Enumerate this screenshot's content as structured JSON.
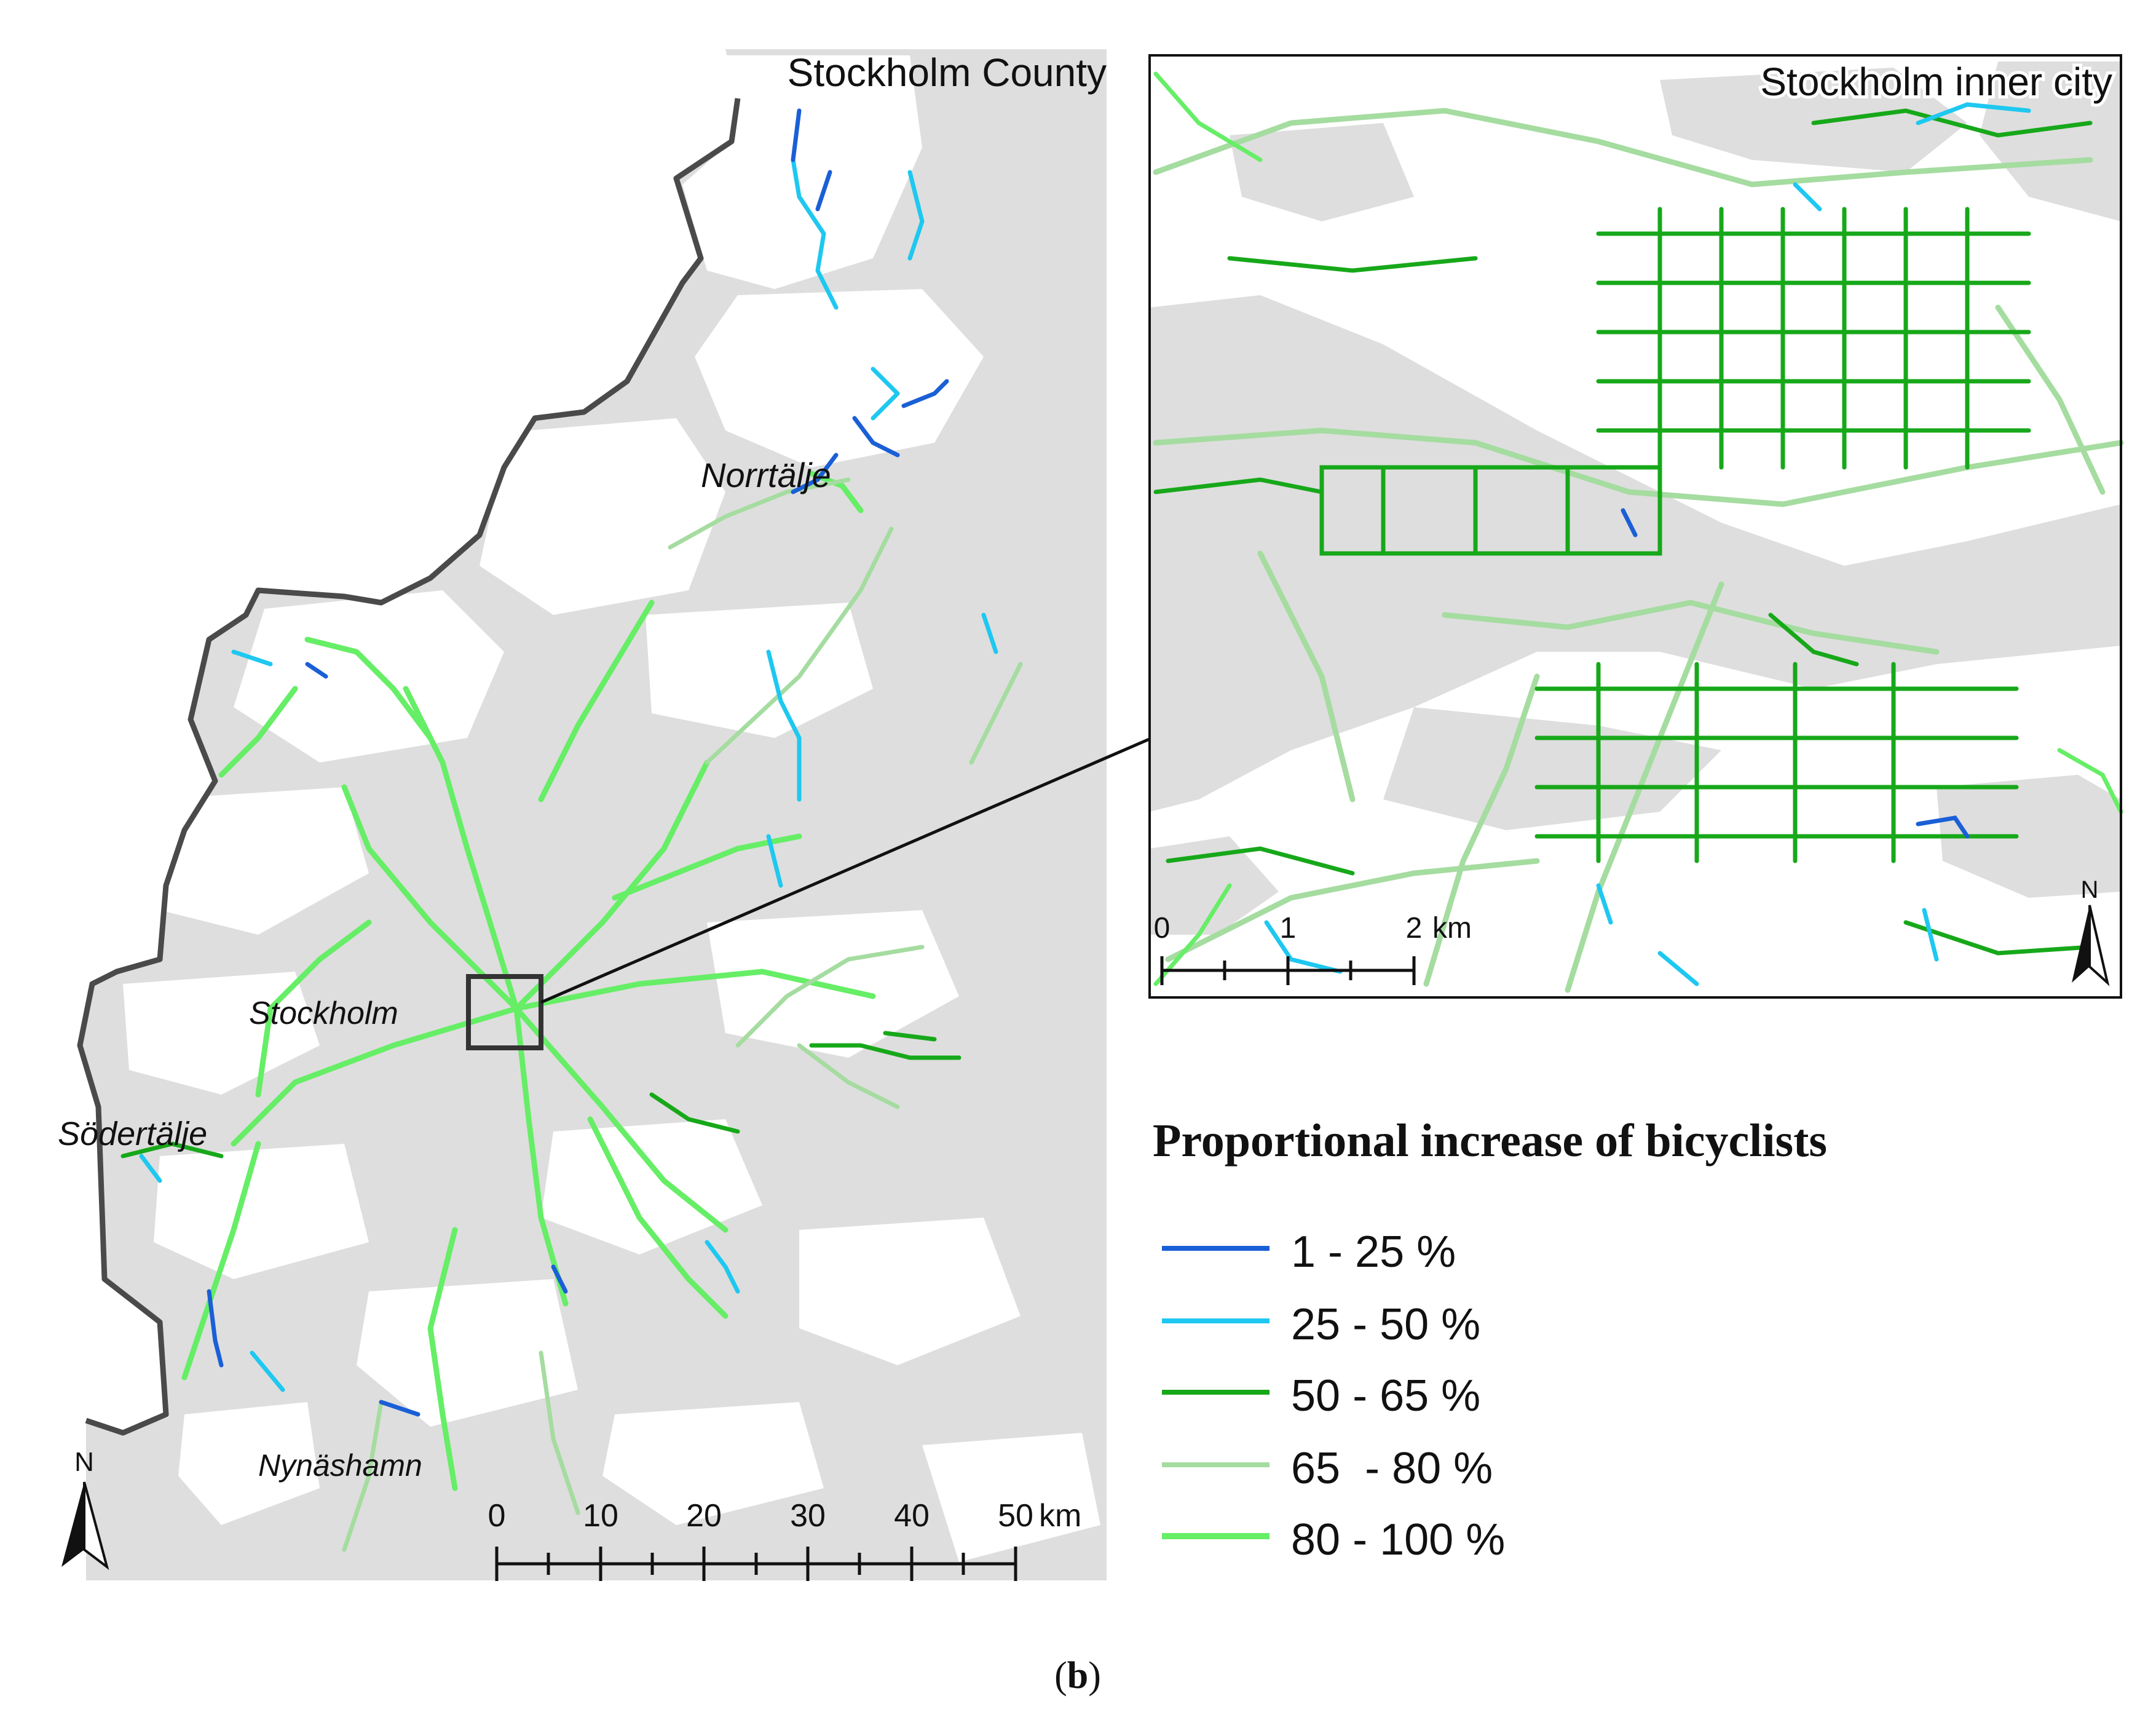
{
  "figure_label": "b",
  "main_map": {
    "region_title": "Stockholm County",
    "places": [
      {
        "name": "Norrtälje"
      },
      {
        "name": "Stockholm"
      },
      {
        "name": "Södertälje"
      },
      {
        "name": "Nynäshamn"
      }
    ],
    "north_arrow": "N",
    "north_arrow_icon": "north-arrow-icon",
    "scale_bar": {
      "ticks": [
        "0",
        "10",
        "20",
        "30",
        "40",
        "50"
      ],
      "unit": "km"
    }
  },
  "inset_map": {
    "title": "Stockholm inner city",
    "north_arrow": "N",
    "north_arrow_icon": "north-arrow-icon",
    "scale_bar": {
      "ticks": [
        "0",
        "1",
        "2"
      ],
      "unit": "km"
    }
  },
  "legend": {
    "title": "Proportional increase of bicyclists",
    "items": [
      {
        "label": "1 - 25 %",
        "color": "#1a5fd6"
      },
      {
        "label": "25 - 50 %",
        "color": "#1ec8f0"
      },
      {
        "label": "50 - 65 %",
        "color": "#17a81a"
      },
      {
        "label": "65  - 80 %",
        "color": "#a5dca0"
      },
      {
        "label": "80 - 100 %",
        "color": "#66ee66"
      }
    ]
  },
  "colors": {
    "land_shade": "#dedede",
    "water": "#ffffff",
    "county_border": "#4a4a4a",
    "connector": "#111111"
  }
}
